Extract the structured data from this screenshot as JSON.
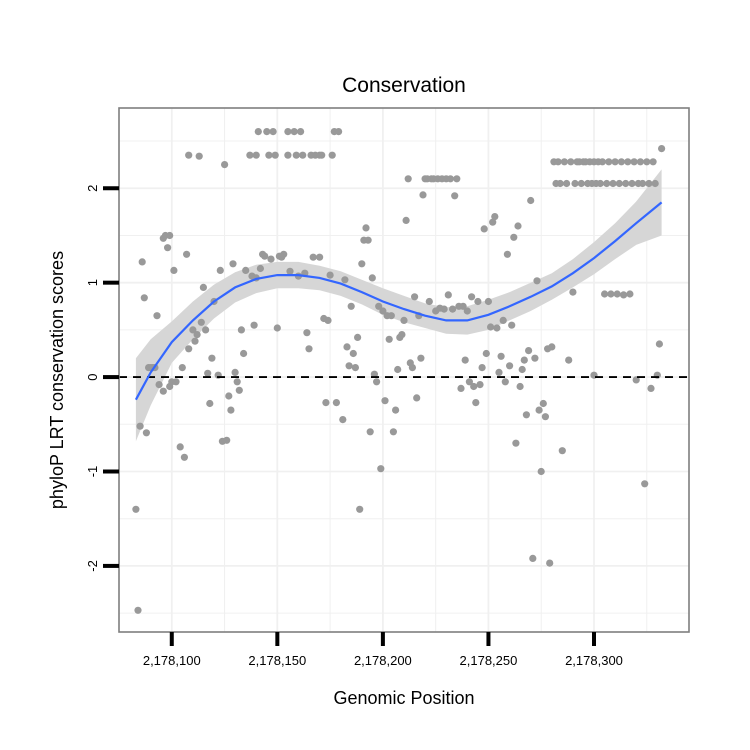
{
  "chart_data": {
    "type": "scatter",
    "title": "Conservation",
    "xlabel": "Genomic Position",
    "ylabel": "phyloP LRT conservation scores",
    "xlim": [
      2178075,
      2178345
    ],
    "ylim": [
      -2.7,
      2.85
    ],
    "x_ticks": [
      2178100,
      2178150,
      2178200,
      2178250,
      2178300
    ],
    "x_tick_labels": [
      "2,178,100",
      "2,178,150",
      "2,178,200",
      "2,178,250",
      "2,178,300"
    ],
    "y_ticks": [
      -2,
      -1,
      0,
      1,
      2
    ],
    "y_tick_labels": [
      "-2",
      "-1",
      "0",
      "1",
      "2"
    ],
    "grid": true,
    "reference_line": {
      "y": 0,
      "style": "dashed"
    },
    "colors": {
      "points": "#999999",
      "smooth": "#3366ff",
      "ribbon": "#d6d6d6",
      "panel_border": "#7f7f7f",
      "grid": "#f0f0f0"
    },
    "points": [
      [
        2178083,
        -1.4
      ],
      [
        2178084,
        -2.47
      ],
      [
        2178085,
        -0.52
      ],
      [
        2178086,
        1.22
      ],
      [
        2178087,
        0.84
      ],
      [
        2178088,
        -0.59
      ],
      [
        2178089,
        0.1
      ],
      [
        2178090,
        0.1
      ],
      [
        2178091,
        0.1
      ],
      [
        2178092,
        0.1
      ],
      [
        2178093,
        0.65
      ],
      [
        2178094,
        -0.08
      ],
      [
        2178096,
        -0.15
      ],
      [
        2178096,
        1.47
      ],
      [
        2178097,
        1.5
      ],
      [
        2178098,
        1.37
      ],
      [
        2178099,
        1.5
      ],
      [
        2178099,
        -0.1
      ],
      [
        2178100,
        -0.05
      ],
      [
        2178101,
        1.13
      ],
      [
        2178102,
        -0.05
      ],
      [
        2178104,
        -0.74
      ],
      [
        2178105,
        0.1
      ],
      [
        2178106,
        -0.85
      ],
      [
        2178107,
        1.3
      ],
      [
        2178108,
        0.3
      ],
      [
        2178108,
        2.35
      ],
      [
        2178110,
        0.5
      ],
      [
        2178111,
        0.38
      ],
      [
        2178112,
        0.45
      ],
      [
        2178113,
        2.34
      ],
      [
        2178114,
        0.58
      ],
      [
        2178115,
        0.95
      ],
      [
        2178116,
        0.5
      ],
      [
        2178117,
        0.04
      ],
      [
        2178118,
        -0.28
      ],
      [
        2178119,
        0.2
      ],
      [
        2178120,
        0.8
      ],
      [
        2178122,
        0.02
      ],
      [
        2178123,
        1.13
      ],
      [
        2178124,
        -0.68
      ],
      [
        2178125,
        2.25
      ],
      [
        2178126,
        -0.67
      ],
      [
        2178127,
        -0.2
      ],
      [
        2178128,
        -0.35
      ],
      [
        2178129,
        1.2
      ],
      [
        2178130,
        0.05
      ],
      [
        2178131,
        -0.05
      ],
      [
        2178132,
        -0.14
      ],
      [
        2178133,
        0.5
      ],
      [
        2178134,
        0.25
      ],
      [
        2178135,
        1.13
      ],
      [
        2178137,
        2.35
      ],
      [
        2178138,
        1.07
      ],
      [
        2178139,
        0.55
      ],
      [
        2178140,
        2.35
      ],
      [
        2178140,
        1.05
      ],
      [
        2178141,
        2.6
      ],
      [
        2178142,
        1.15
      ],
      [
        2178143,
        1.3
      ],
      [
        2178144,
        1.28
      ],
      [
        2178145,
        2.6
      ],
      [
        2178146,
        2.35
      ],
      [
        2178147,
        1.25
      ],
      [
        2178148,
        2.6
      ],
      [
        2178149,
        2.35
      ],
      [
        2178150,
        0.52
      ],
      [
        2178151,
        1.28
      ],
      [
        2178152,
        1.27
      ],
      [
        2178153,
        1.3
      ],
      [
        2178155,
        2.6
      ],
      [
        2178155,
        2.35
      ],
      [
        2178156,
        1.12
      ],
      [
        2178158,
        2.6
      ],
      [
        2178159,
        2.35
      ],
      [
        2178160,
        1.07
      ],
      [
        2178161,
        2.6
      ],
      [
        2178162,
        2.35
      ],
      [
        2178163,
        1.1
      ],
      [
        2178164,
        0.47
      ],
      [
        2178165,
        0.3
      ],
      [
        2178166,
        2.35
      ],
      [
        2178167,
        1.27
      ],
      [
        2178168,
        2.35
      ],
      [
        2178170,
        2.35
      ],
      [
        2178170,
        1.27
      ],
      [
        2178171,
        2.35
      ],
      [
        2178172,
        0.62
      ],
      [
        2178173,
        -0.27
      ],
      [
        2178174,
        0.6
      ],
      [
        2178175,
        1.08
      ],
      [
        2178176,
        2.35
      ],
      [
        2178177,
        2.6
      ],
      [
        2178178,
        -0.27
      ],
      [
        2178179,
        2.6
      ],
      [
        2178181,
        -0.45
      ],
      [
        2178182,
        1.03
      ],
      [
        2178183,
        0.32
      ],
      [
        2178184,
        0.12
      ],
      [
        2178185,
        0.75
      ],
      [
        2178186,
        0.25
      ],
      [
        2178187,
        0.1
      ],
      [
        2178188,
        0.42
      ],
      [
        2178189,
        -1.4
      ],
      [
        2178190,
        1.2
      ],
      [
        2178191,
        1.45
      ],
      [
        2178192,
        1.58
      ],
      [
        2178193,
        1.45
      ],
      [
        2178194,
        -0.58
      ],
      [
        2178195,
        1.05
      ],
      [
        2178196,
        0.03
      ],
      [
        2178197,
        -0.05
      ],
      [
        2178198,
        0.75
      ],
      [
        2178199,
        -0.97
      ],
      [
        2178200,
        0.7
      ],
      [
        2178201,
        -0.25
      ],
      [
        2178202,
        0.65
      ],
      [
        2178203,
        0.4
      ],
      [
        2178204,
        0.65
      ],
      [
        2178205,
        -0.58
      ],
      [
        2178206,
        -0.35
      ],
      [
        2178207,
        0.08
      ],
      [
        2178208,
        0.42
      ],
      [
        2178209,
        0.45
      ],
      [
        2178210,
        0.6
      ],
      [
        2178211,
        1.66
      ],
      [
        2178212,
        2.1
      ],
      [
        2178213,
        0.15
      ],
      [
        2178214,
        0.1
      ],
      [
        2178215,
        0.85
      ],
      [
        2178216,
        -0.22
      ],
      [
        2178217,
        0.65
      ],
      [
        2178218,
        0.2
      ],
      [
        2178219,
        1.93
      ],
      [
        2178220,
        2.1
      ],
      [
        2178221,
        2.1
      ],
      [
        2178222,
        0.8
      ],
      [
        2178223,
        2.1
      ],
      [
        2178224,
        2.1
      ],
      [
        2178225,
        0.7
      ],
      [
        2178226,
        2.1
      ],
      [
        2178227,
        0.73
      ],
      [
        2178228,
        2.1
      ],
      [
        2178229,
        0.72
      ],
      [
        2178230,
        2.1
      ],
      [
        2178231,
        0.87
      ],
      [
        2178232,
        2.1
      ],
      [
        2178233,
        0.72
      ],
      [
        2178234,
        1.92
      ],
      [
        2178235,
        2.1
      ],
      [
        2178236,
        0.75
      ],
      [
        2178237,
        -0.12
      ],
      [
        2178238,
        0.75
      ],
      [
        2178239,
        0.18
      ],
      [
        2178240,
        0.7
      ],
      [
        2178241,
        -0.05
      ],
      [
        2178242,
        0.85
      ],
      [
        2178243,
        -0.1
      ],
      [
        2178244,
        -0.27
      ],
      [
        2178245,
        0.8
      ],
      [
        2178246,
        -0.08
      ],
      [
        2178247,
        0.1
      ],
      [
        2178248,
        1.57
      ],
      [
        2178249,
        0.25
      ],
      [
        2178250,
        0.8
      ],
      [
        2178251,
        0.53
      ],
      [
        2178252,
        1.64
      ],
      [
        2178253,
        1.7
      ],
      [
        2178254,
        0.52
      ],
      [
        2178255,
        0.05
      ],
      [
        2178256,
        0.22
      ],
      [
        2178257,
        0.6
      ],
      [
        2178258,
        -0.05
      ],
      [
        2178259,
        1.3
      ],
      [
        2178260,
        0.12
      ],
      [
        2178261,
        0.55
      ],
      [
        2178262,
        1.48
      ],
      [
        2178263,
        -0.7
      ],
      [
        2178264,
        1.6
      ],
      [
        2178265,
        -0.1
      ],
      [
        2178266,
        0.08
      ],
      [
        2178267,
        0.18
      ],
      [
        2178268,
        -0.4
      ],
      [
        2178269,
        0.28
      ],
      [
        2178270,
        1.87
      ],
      [
        2178271,
        -1.92
      ],
      [
        2178272,
        0.2
      ],
      [
        2178273,
        1.02
      ],
      [
        2178274,
        -0.35
      ],
      [
        2178275,
        -1.0
      ],
      [
        2178276,
        -0.28
      ],
      [
        2178277,
        -0.42
      ],
      [
        2178278,
        0.3
      ],
      [
        2178279,
        -1.97
      ],
      [
        2178280,
        0.32
      ],
      [
        2178281,
        2.28
      ],
      [
        2178282,
        2.05
      ],
      [
        2178283,
        2.28
      ],
      [
        2178284,
        2.05
      ],
      [
        2178285,
        -0.78
      ],
      [
        2178286,
        2.28
      ],
      [
        2178287,
        2.05
      ],
      [
        2178288,
        0.18
      ],
      [
        2178289,
        2.28
      ],
      [
        2178290,
        0.9
      ],
      [
        2178291,
        2.05
      ],
      [
        2178292,
        2.28
      ],
      [
        2178293,
        2.28
      ],
      [
        2178294,
        2.05
      ],
      [
        2178295,
        2.28
      ],
      [
        2178296,
        2.28
      ],
      [
        2178297,
        2.05
      ],
      [
        2178298,
        2.28
      ],
      [
        2178299,
        2.05
      ],
      [
        2178300,
        2.28
      ],
      [
        2178300,
        0.02
      ],
      [
        2178301,
        2.05
      ],
      [
        2178302,
        2.28
      ],
      [
        2178303,
        2.05
      ],
      [
        2178304,
        2.28
      ],
      [
        2178305,
        0.88
      ],
      [
        2178306,
        2.05
      ],
      [
        2178307,
        2.28
      ],
      [
        2178308,
        0.88
      ],
      [
        2178309,
        2.05
      ],
      [
        2178310,
        2.28
      ],
      [
        2178311,
        0.88
      ],
      [
        2178312,
        2.05
      ],
      [
        2178313,
        2.28
      ],
      [
        2178314,
        0.87
      ],
      [
        2178315,
        2.05
      ],
      [
        2178316,
        2.28
      ],
      [
        2178317,
        0.88
      ],
      [
        2178318,
        2.05
      ],
      [
        2178319,
        2.28
      ],
      [
        2178320,
        -0.03
      ],
      [
        2178321,
        2.05
      ],
      [
        2178322,
        2.28
      ],
      [
        2178323,
        2.05
      ],
      [
        2178324,
        -1.13
      ],
      [
        2178325,
        2.28
      ],
      [
        2178326,
        2.05
      ],
      [
        2178327,
        -0.12
      ],
      [
        2178328,
        2.28
      ],
      [
        2178329,
        2.05
      ],
      [
        2178330,
        0.02
      ],
      [
        2178331,
        0.35
      ],
      [
        2178332,
        2.42
      ]
    ],
    "smooth": {
      "x": [
        2178083,
        2178090,
        2178100,
        2178110,
        2178120,
        2178130,
        2178140,
        2178150,
        2178160,
        2178170,
        2178180,
        2178190,
        2178200,
        2178210,
        2178220,
        2178230,
        2178240,
        2178250,
        2178260,
        2178270,
        2178280,
        2178290,
        2178300,
        2178310,
        2178320,
        2178332
      ],
      "y": [
        -0.24,
        0.05,
        0.37,
        0.6,
        0.8,
        0.95,
        1.04,
        1.08,
        1.08,
        1.05,
        0.99,
        0.9,
        0.8,
        0.72,
        0.65,
        0.6,
        0.6,
        0.66,
        0.75,
        0.85,
        0.96,
        1.1,
        1.26,
        1.44,
        1.63,
        1.85
      ],
      "lower": [
        -0.68,
        -0.3,
        0.15,
        0.4,
        0.62,
        0.79,
        0.89,
        0.94,
        0.94,
        0.92,
        0.86,
        0.77,
        0.66,
        0.58,
        0.52,
        0.46,
        0.45,
        0.5,
        0.6,
        0.7,
        0.82,
        0.95,
        1.09,
        1.25,
        1.4,
        1.5
      ],
      "upper": [
        0.2,
        0.4,
        0.59,
        0.8,
        0.98,
        1.11,
        1.19,
        1.22,
        1.22,
        1.18,
        1.12,
        1.03,
        0.94,
        0.86,
        0.78,
        0.74,
        0.75,
        0.82,
        0.9,
        1.0,
        1.1,
        1.25,
        1.43,
        1.63,
        1.86,
        2.2
      ]
    }
  }
}
